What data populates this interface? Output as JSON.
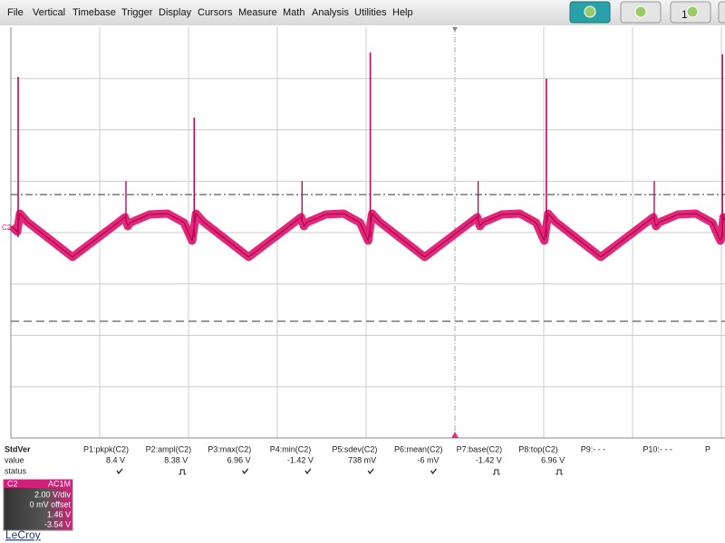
{
  "menu": [
    "File",
    "Vertical",
    "Timebase",
    "Trigger",
    "Display",
    "Cursors",
    "Measure",
    "Math",
    "Analysis",
    "Utilities",
    "Help"
  ],
  "toolbar_badge": "1",
  "trace_label": "C2",
  "measurements": {
    "row_labels": [
      "StdVer",
      "value",
      "status"
    ],
    "columns": [
      {
        "header": "P1:pkpk(C2)",
        "value": "8.4 V"
      },
      {
        "header": "P2:ampl(C2)",
        "value": "8.38 V"
      },
      {
        "header": "P3:max(C2)",
        "value": "6.96 V"
      },
      {
        "header": "P4:min(C2)",
        "value": "-1.42 V"
      },
      {
        "header": "P5:sdev(C2)",
        "value": "738 mV"
      },
      {
        "header": "P6:mean(C2)",
        "value": "-6 mV"
      },
      {
        "header": "P7:base(C2)",
        "value": "-1.42 V"
      },
      {
        "header": "P8:top(C2)",
        "value": "6.96 V"
      },
      {
        "header": "P9:- - -"
      },
      {
        "header": "P10:- - -"
      },
      {
        "header": "P"
      }
    ]
  },
  "channel": {
    "name": "C2",
    "coupling": "AC1M",
    "scale": "2.00 V/div",
    "offset": "0 mV offset",
    "upper": "1.46 V",
    "lower": "-3.54 V"
  },
  "logo": "LeCroy"
}
